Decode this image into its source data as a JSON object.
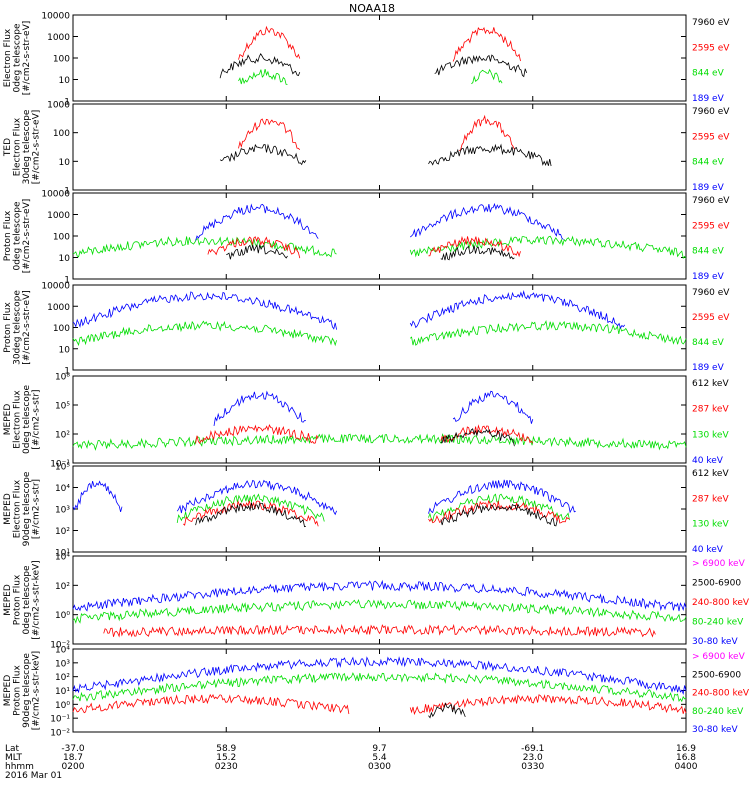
{
  "title": "NOAA18",
  "colors": {
    "black": "#000000",
    "red": "#ff0000",
    "green": "#00dd00",
    "blue": "#0000ff",
    "magenta": "#ff00ff"
  },
  "chart_data": {
    "type": "line",
    "x_range": [
      "0200",
      "0400"
    ],
    "x_ticks": {
      "rows": [
        {
          "label": "Lat",
          "values": [
            "-37.0",
            "58.9",
            "9.7",
            "-69.1",
            "16.9"
          ]
        },
        {
          "label": "MLT",
          "values": [
            "18.7",
            "15.2",
            "5.4",
            "23.0",
            "16.8"
          ]
        },
        {
          "label": "hhmm",
          "values": [
            "0200",
            "0230",
            "0300",
            "0330",
            "0400"
          ]
        }
      ],
      "date": "2016 Mar 01"
    },
    "panels": [
      {
        "ylabel": [
          "Electron Flux",
          "0deg telescope",
          "[#/cm2-s-str-eV]"
        ],
        "scale": "log",
        "ylim": [
          1,
          10000
        ],
        "yticks": [
          "1",
          "10",
          "100",
          "1000",
          "10000"
        ],
        "legend": [
          {
            "text": "7960 eV",
            "color": "black"
          },
          {
            "text": "2595 eV",
            "color": "red"
          },
          {
            "text": "844 eV",
            "color": "green"
          },
          {
            "text": "189 eV",
            "color": "blue"
          }
        ],
        "series": [
          {
            "color": "red",
            "peak_log": 3.5,
            "segments": [
              [
                0.27,
                0.37
              ],
              [
                0.62,
                0.73
              ]
            ]
          },
          {
            "color": "black",
            "peak_log": 2.2,
            "segments": [
              [
                0.24,
                0.37
              ],
              [
                0.59,
                0.74
              ]
            ]
          },
          {
            "color": "green",
            "peak_log": 1.5,
            "segments": [
              [
                0.27,
                0.35
              ],
              [
                0.65,
                0.7
              ]
            ]
          }
        ]
      },
      {
        "ylabel": [
          "TED",
          "Electron Flux",
          "30deg telescope",
          "[#/cm2-s-str-eV]"
        ],
        "scale": "log",
        "ylim": [
          1,
          1000
        ],
        "yticks": [
          "1",
          "10",
          "100",
          "1000"
        ],
        "legend": [
          {
            "text": "7960 eV",
            "color": "black"
          },
          {
            "text": "2595 eV",
            "color": "red"
          },
          {
            "text": "844 eV",
            "color": "green"
          },
          {
            "text": "189 eV",
            "color": "blue"
          }
        ],
        "series": [
          {
            "color": "red",
            "peak_log": 2.6,
            "segments": [
              [
                0.27,
                0.37
              ],
              [
                0.63,
                0.72
              ]
            ]
          },
          {
            "color": "black",
            "peak_log": 1.6,
            "segments": [
              [
                0.24,
                0.38
              ],
              [
                0.58,
                0.78
              ]
            ]
          }
        ]
      },
      {
        "ylabel": [
          "Proton Flux",
          "0deg telescope",
          "[#/cm2-s-str-eV]"
        ],
        "scale": "log",
        "ylim": [
          1,
          10000
        ],
        "yticks": [
          "1",
          "10",
          "100",
          "1000",
          "10000"
        ],
        "legend": [
          {
            "text": "7960 eV",
            "color": "black"
          },
          {
            "text": "2595 eV",
            "color": "red"
          },
          {
            "text": "844 eV",
            "color": "green"
          },
          {
            "text": "189 eV",
            "color": "blue"
          }
        ],
        "series": [
          {
            "color": "green",
            "peak_log": 2.0,
            "segments": [
              [
                0.0,
                0.43
              ],
              [
                0.55,
                1.0
              ]
            ]
          },
          {
            "color": "blue",
            "peak_log": 3.5,
            "segments": [
              [
                0.2,
                0.4
              ],
              [
                0.55,
                0.8
              ]
            ]
          },
          {
            "color": "red",
            "peak_log": 2.0,
            "segments": [
              [
                0.22,
                0.37
              ],
              [
                0.58,
                0.73
              ]
            ]
          },
          {
            "color": "black",
            "peak_log": 1.6,
            "segments": [
              [
                0.25,
                0.35
              ],
              [
                0.6,
                0.72
              ]
            ]
          }
        ]
      },
      {
        "ylabel": [
          "Proton Flux",
          "30deg telescope",
          "[#/cm2-s-str-eV]"
        ],
        "scale": "log",
        "ylim": [
          1,
          10000
        ],
        "yticks": [
          "1",
          "10",
          "100",
          "1000",
          "10000"
        ],
        "legend": [
          {
            "text": "7960 eV",
            "color": "black"
          },
          {
            "text": "2595 eV",
            "color": "red"
          },
          {
            "text": "844 eV",
            "color": "green"
          },
          {
            "text": "189 eV",
            "color": "blue"
          }
        ],
        "series": [
          {
            "color": "green",
            "peak_log": 2.3,
            "segments": [
              [
                0.0,
                0.43
              ],
              [
                0.55,
                1.0
              ]
            ]
          },
          {
            "color": "blue",
            "peak_log": 3.7,
            "segments": [
              [
                0.0,
                0.43
              ],
              [
                0.55,
                0.9
              ]
            ]
          }
        ]
      },
      {
        "ylabel": [
          "MEPED",
          "Electron Flux",
          "0deg telescope",
          "[#/cm2-s-str]"
        ],
        "scale": "log",
        "ylim": [
          0.1,
          100000000
        ],
        "yticks": [
          "10⁻¹",
          "10²",
          "10⁵",
          "10⁸"
        ],
        "legend": [
          {
            "text": "612 keV",
            "color": "black"
          },
          {
            "text": "287 keV",
            "color": "red"
          },
          {
            "text": "130 keV",
            "color": "green"
          },
          {
            "text": "40 keV",
            "color": "blue"
          }
        ],
        "series": [
          {
            "color": "green",
            "peak_log": 2.0,
            "segments": [
              [
                0.0,
                1.0
              ]
            ]
          },
          {
            "color": "blue",
            "peak_log": 6.5,
            "segments": [
              [
                0.23,
                0.38
              ],
              [
                0.62,
                0.75
              ]
            ]
          },
          {
            "color": "red",
            "peak_log": 3.0,
            "segments": [
              [
                0.2,
                0.4
              ],
              [
                0.6,
                0.75
              ]
            ]
          },
          {
            "color": "black",
            "peak_log": 2.7,
            "segments": [
              [
                0.6,
                0.72
              ]
            ]
          }
        ]
      },
      {
        "ylabel": [
          "MEPED",
          "Electron Flux",
          "90deg telescope",
          "[#/cm2-s-str]"
        ],
        "scale": "log",
        "ylim": [
          10,
          1000000
        ],
        "yticks": [
          "10¹",
          "10²",
          "10³",
          "10⁴",
          "10⁵"
        ],
        "legend": [
          {
            "text": "612 keV",
            "color": "black"
          },
          {
            "text": "287 keV",
            "color": "red"
          },
          {
            "text": "130 keV",
            "color": "green"
          },
          {
            "text": "40 keV",
            "color": "blue"
          }
        ],
        "series": [
          {
            "color": "blue",
            "peak_log": 5.2,
            "segments": [
              [
                0.0,
                0.08
              ],
              [
                0.17,
                0.43
              ],
              [
                0.58,
                0.82
              ]
            ]
          },
          {
            "color": "green",
            "peak_log": 4.4,
            "segments": [
              [
                0.17,
                0.41
              ],
              [
                0.58,
                0.81
              ]
            ]
          },
          {
            "color": "red",
            "peak_log": 4.0,
            "segments": [
              [
                0.18,
                0.4
              ],
              [
                0.58,
                0.81
              ]
            ]
          },
          {
            "color": "black",
            "peak_log": 3.9,
            "segments": [
              [
                0.2,
                0.38
              ],
              [
                0.6,
                0.79
              ]
            ]
          }
        ]
      },
      {
        "ylabel": [
          "MEPED",
          "Proton Flux",
          "0deg telescope",
          "[#/cm2-s-str-keV]"
        ],
        "scale": "log",
        "ylim": [
          0.01,
          100000
        ],
        "yticks": [
          "10⁻²",
          "10⁰",
          "10²",
          "10⁴"
        ],
        "legend": [
          {
            "text": "> 6900 keV",
            "color": "magenta"
          },
          {
            "text": "2500-6900",
            "color": "black"
          },
          {
            "text": "240-800 keV",
            "color": "red"
          },
          {
            "text": "80-240 keV",
            "color": "green"
          },
          {
            "text": "30-80 keV",
            "color": "blue"
          }
        ],
        "series": [
          {
            "color": "blue",
            "peak_log": 3.0,
            "segments": [
              [
                0.0,
                1.0
              ]
            ]
          },
          {
            "color": "green",
            "peak_log": 1.5,
            "segments": [
              [
                0.0,
                1.0
              ]
            ]
          },
          {
            "color": "red",
            "peak_log": -0.5,
            "segments": [
              [
                0.05,
                0.95
              ]
            ]
          }
        ]
      },
      {
        "ylabel": [
          "MEPED",
          "Proton Flux",
          "90deg telescope",
          "[#/cm2-s-str-keV]"
        ],
        "scale": "log",
        "ylim": [
          0.01,
          10000
        ],
        "yticks": [
          "10⁻²",
          "10⁻¹",
          "10⁰",
          "10¹",
          "10²",
          "10³",
          "10⁴"
        ],
        "legend": [
          {
            "text": "> 6900 keV",
            "color": "magenta"
          },
          {
            "text": "2500-6900",
            "color": "black"
          },
          {
            "text": "240-800 keV",
            "color": "red"
          },
          {
            "text": "80-240 keV",
            "color": "green"
          },
          {
            "text": "30-80 keV",
            "color": "blue"
          }
        ],
        "series": [
          {
            "color": "blue",
            "peak_log": 3.4,
            "segments": [
              [
                0.0,
                1.0
              ]
            ]
          },
          {
            "color": "green",
            "peak_log": 2.3,
            "segments": [
              [
                0.0,
                1.0
              ]
            ]
          },
          {
            "color": "red",
            "peak_log": 0.7,
            "segments": [
              [
                0.0,
                0.45
              ],
              [
                0.55,
                1.0
              ]
            ]
          },
          {
            "color": "black",
            "peak_log": 0.1,
            "segments": [
              [
                0.58,
                0.64
              ]
            ]
          }
        ]
      }
    ]
  }
}
